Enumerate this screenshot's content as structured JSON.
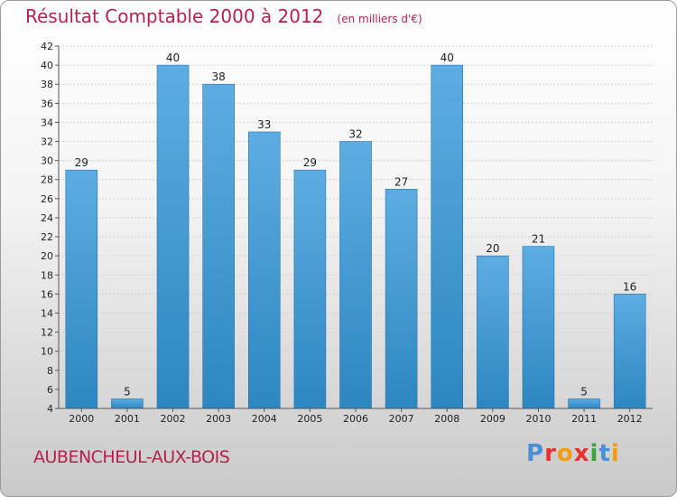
{
  "title": "Résultat Comptable 2000 à 2012",
  "unit": "(en milliers d'€)",
  "city": "AUBENCHEUL-AUX-BOIS",
  "logo": {
    "text": "Proxiti",
    "colors": [
      "#4a8fd6",
      "#e6312f",
      "#f39c12",
      "#e6312f",
      "#3aa53a",
      "#4a8fd6",
      "#f39c12"
    ]
  },
  "chart_data": {
    "type": "bar",
    "title": "Résultat Comptable 2000 à 2012",
    "unit": "(en milliers d'€)",
    "categories": [
      "2000",
      "2001",
      "2002",
      "2003",
      "2004",
      "2005",
      "2006",
      "2007",
      "2008",
      "2009",
      "2010",
      "2011",
      "2012"
    ],
    "values": [
      29,
      5,
      40,
      38,
      33,
      29,
      32,
      27,
      40,
      20,
      21,
      5,
      16
    ],
    "ylim": [
      4,
      42
    ],
    "yticks": [
      4,
      6,
      8,
      10,
      12,
      14,
      16,
      18,
      20,
      22,
      24,
      26,
      28,
      30,
      32,
      34,
      36,
      38,
      40,
      42
    ],
    "grid": true,
    "bar_color_top": "#5dade2",
    "bar_color_bottom": "#2e86c1",
    "axis_color": "#555555",
    "grid_color": "#cfcfcf"
  }
}
